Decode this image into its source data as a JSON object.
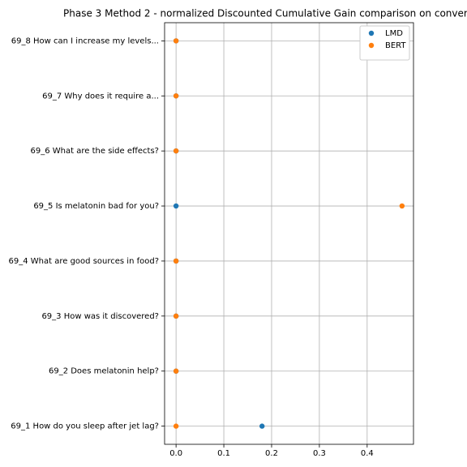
{
  "chart_data": {
    "type": "scatter",
    "title": "Phase 3 Method 2 - normalized Discounted Cumulative Gain comparison on conver",
    "categories": [
      "69_1 How do you sleep after jet lag?",
      "69_2 Does melatonin help?",
      "69_3 How was it discovered?",
      "69_4 What are good sources in food?",
      "69_5 Is melatonin bad for you?",
      "69_6 What are the side effects?",
      "69_7 Why does it require a...",
      "69_8 How can I increase my levels..."
    ],
    "series": [
      {
        "name": "LMD",
        "color": "#1f77b4",
        "values": [
          0.18,
          0,
          0,
          0,
          0,
          0,
          0,
          0
        ]
      },
      {
        "name": "BERT",
        "color": "#ff7f0e",
        "values": [
          0,
          0,
          0,
          0,
          0.473,
          0,
          0,
          0
        ]
      }
    ],
    "xlim": [
      -0.024,
      0.497
    ],
    "xticks": [
      {
        "value": 0,
        "label": "0.0"
      },
      0.1,
      0.2,
      0.3,
      0.4
    ],
    "grid": true,
    "legend": "upper right"
  }
}
